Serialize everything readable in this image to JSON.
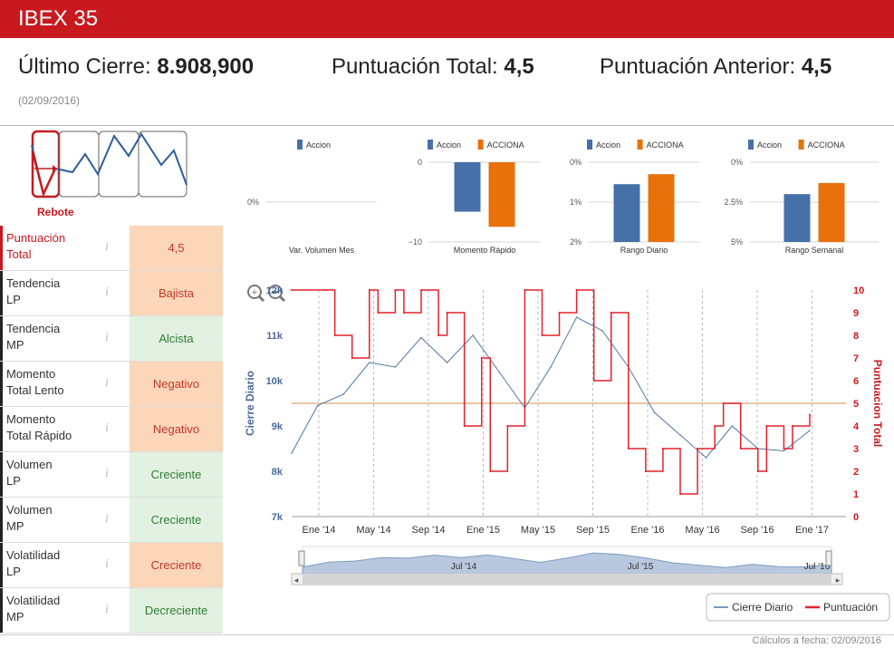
{
  "header": {
    "title": "IBEX 35"
  },
  "stats": {
    "last_close_label": "Último Cierre:",
    "last_close_value": "8.908,900",
    "total_score_label": "Puntuación Total:",
    "total_score_value": "4,5",
    "prev_score_label": "Puntuación Anterior:",
    "prev_score_value": "4,5",
    "date": "(02/09/2016)"
  },
  "logo": {
    "label": "Rebote"
  },
  "rows": [
    {
      "label_line1": "Puntuación",
      "label_line2": "Total",
      "info": "i",
      "value": "4,5",
      "tone": "orange",
      "label_red": true
    },
    {
      "label_line1": "Tendencia",
      "label_line2": "LP",
      "info": "i",
      "value": "Bajista",
      "tone": "orange"
    },
    {
      "label_line1": "Tendencia",
      "label_line2": "MP",
      "info": "i",
      "value": "Alcista",
      "tone": "green"
    },
    {
      "label_line1": "Momento",
      "label_line2": "Total Lento",
      "info": "i",
      "value": "Negativo",
      "tone": "orange"
    },
    {
      "label_line1": "Momento",
      "label_line2": "Total Rápido",
      "info": "i",
      "value": "Negativo",
      "tone": "orange"
    },
    {
      "label_line1": "Volumen",
      "label_line2": "LP",
      "info": "i",
      "value": "Creciente",
      "tone": "green"
    },
    {
      "label_line1": "Volumen",
      "label_line2": "MP",
      "info": "i",
      "value": "Creciente",
      "tone": "green"
    },
    {
      "label_line1": "Volatilidad",
      "label_line2": "LP",
      "info": "i",
      "value": "Creciente",
      "tone": "orange"
    },
    {
      "label_line1": "Volatilidad",
      "label_line2": "MP",
      "info": "i",
      "value": "Decreciente",
      "tone": "green"
    }
  ],
  "colors": {
    "accent": "#c8191f",
    "accion": "#4671a8",
    "acciona": "#e8710c",
    "score_line": "#e3222b",
    "price_line": "#4f76a6"
  },
  "chart_data": [
    {
      "type": "bar",
      "xlabel": "Var. Volumen Mes",
      "series": [
        {
          "name": "Accion",
          "values": [
            0
          ]
        }
      ],
      "ylim": [
        -1,
        1
      ],
      "yticks": [
        "0%"
      ]
    },
    {
      "type": "bar",
      "xlabel": "Momento Rápido",
      "series": [
        {
          "name": "Accion",
          "values": [
            -6.2
          ]
        },
        {
          "name": "ACCIONA",
          "values": [
            -8.1
          ]
        }
      ],
      "ylim": [
        -10,
        0
      ],
      "yticks": [
        "0",
        "−10"
      ]
    },
    {
      "type": "bar",
      "xlabel": "Rango Diario",
      "series": [
        {
          "name": "Accion",
          "values": [
            1.45
          ]
        },
        {
          "name": "ACCIONA",
          "values": [
            1.7
          ]
        }
      ],
      "ylim": [
        0,
        2
      ],
      "yticks": [
        "0%",
        "1%",
        "2%"
      ]
    },
    {
      "type": "bar",
      "xlabel": "Rango Semanal",
      "series": [
        {
          "name": "Accion",
          "values": [
            3.0
          ]
        },
        {
          "name": "ACCIONA",
          "values": [
            3.7
          ]
        }
      ],
      "ylim": [
        0,
        5
      ],
      "yticks": [
        "0%",
        "2.5%",
        "5%"
      ]
    },
    {
      "type": "line",
      "ylabel": "Cierre Diario",
      "y2label": "Puntuacion Total",
      "ylim": [
        7000,
        12000
      ],
      "y2lim": [
        0,
        10
      ],
      "yticks": [
        "7k",
        "8k",
        "9k",
        "10k",
        "11k",
        "12k"
      ],
      "y2ticks": [
        "0",
        "1",
        "2",
        "3",
        "4",
        "5",
        "6",
        "7",
        "8",
        "9",
        "10"
      ],
      "xticks": [
        "Ene '14",
        "May '14",
        "Sep '14",
        "Ene '15",
        "May '15",
        "Sep '15",
        "Ene '16",
        "May '16",
        "Sep '16",
        "Ene '17"
      ],
      "navigator_labels": [
        "Jul '14",
        "Jul '15",
        "Jul '16"
      ],
      "reference_score": 5,
      "series": [
        {
          "name": "Cierre Diario",
          "x": [
            0,
            3,
            6,
            9,
            12,
            15,
            18,
            21,
            24,
            27,
            30,
            33,
            36,
            39,
            42,
            45,
            48,
            51,
            54,
            57,
            60
          ],
          "y": [
            8400,
            9450,
            9700,
            10400,
            10300,
            10950,
            10400,
            11000,
            10200,
            9400,
            10300,
            11400,
            11100,
            10300,
            9300,
            8800,
            8300,
            9000,
            8500,
            8450,
            8900
          ]
        },
        {
          "name": "Puntuación",
          "x": [
            0,
            4,
            5,
            7,
            9,
            10,
            12,
            13,
            15,
            17,
            18,
            20,
            22,
            23,
            25,
            27,
            29,
            31,
            33,
            35,
            37,
            39,
            41,
            43,
            45,
            47,
            49,
            50,
            52,
            54,
            55,
            57,
            58,
            60
          ],
          "y": [
            10,
            10,
            8,
            7,
            10,
            9,
            10,
            9,
            10,
            8,
            9,
            4,
            7,
            2,
            4,
            10,
            8,
            9,
            10,
            6,
            9,
            3,
            2,
            3,
            1,
            3,
            4,
            5,
            3,
            2,
            4,
            3,
            4,
            4.5
          ]
        }
      ],
      "legend": [
        "Cierre Diario",
        "Puntuación"
      ]
    }
  ],
  "footer": {
    "calc_date": "Cálculos a fecha: 02/09/2016"
  }
}
